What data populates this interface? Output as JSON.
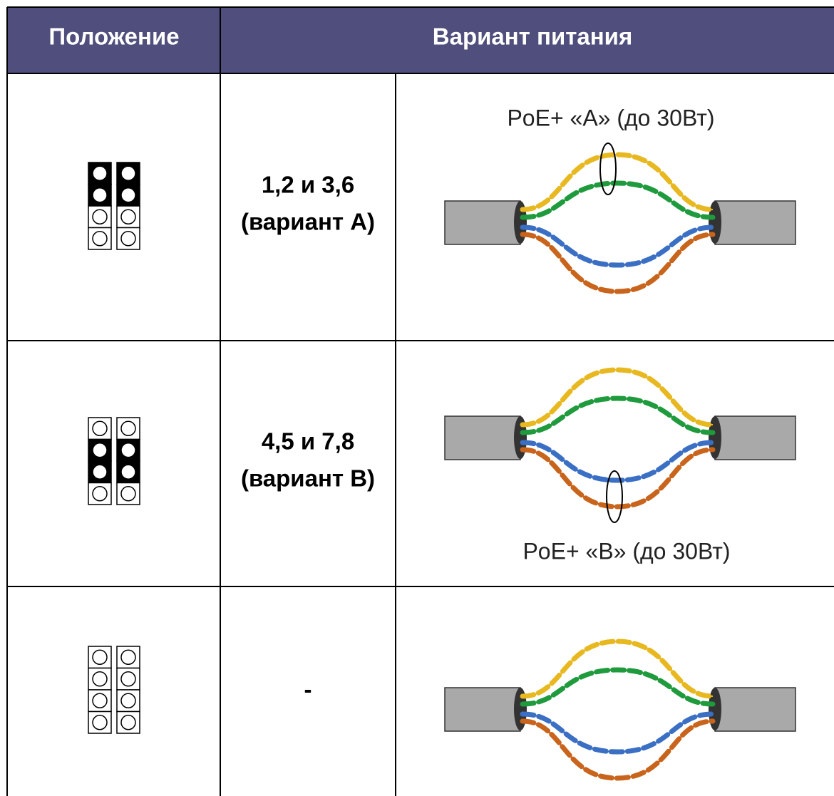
{
  "header": {
    "columns": [
      "Положение",
      "Вариант питания"
    ]
  },
  "rows": [
    {
      "pins": "1,2 и 3,6",
      "variant": "(вариант A)",
      "label": "PoE+ «A» (до 30Вт)"
    },
    {
      "pins": "4,5 и 7,8",
      "variant": "(вариант B)",
      "label": "PoE+ «B» (до 30Вт)"
    },
    {
      "pins": "-"
    }
  ]
}
